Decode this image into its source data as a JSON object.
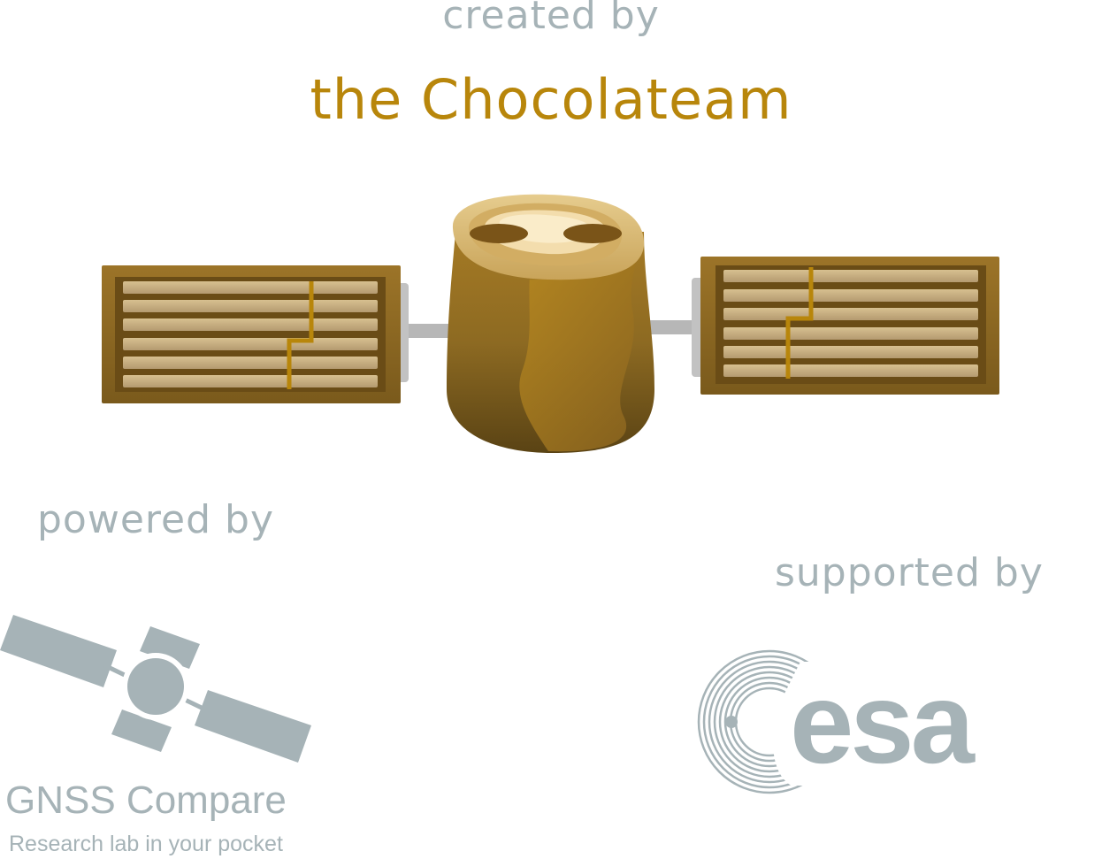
{
  "credits": {
    "created_by_label": "created by",
    "team_name": "the Chocolateam",
    "powered_by_label": "powered by",
    "supported_by_label": "supported by"
  },
  "gnss_logo": {
    "title": "GNSS Compare",
    "subtitle": "Research lab in your pocket",
    "icon": "satellite-icon"
  },
  "esa_logo": {
    "text": "esa",
    "icon": "esa-logo-icon"
  },
  "illustration": {
    "icon": "chocolate-satellite-icon"
  },
  "colors": {
    "accent": "#b8860b",
    "muted": "#a6b3b7",
    "chocolate_light": "#b8892a",
    "chocolate_dark": "#6b4c16"
  }
}
